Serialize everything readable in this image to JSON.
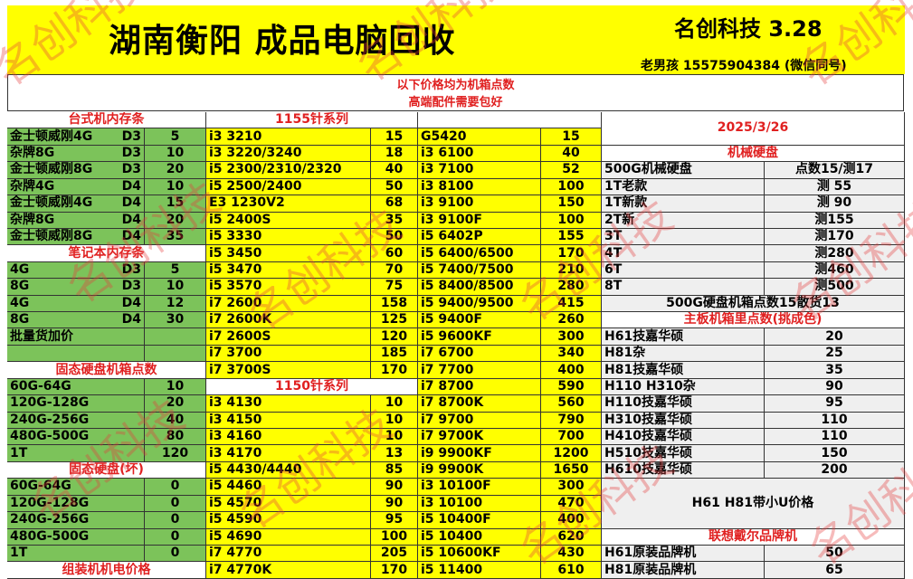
{
  "header": {
    "title": "湖南衡阳 成品电脑回收",
    "brand": "名创科技 3.28",
    "contact": "老男孩 15575904384 (微信同号)"
  },
  "notice": [
    "以下价格均为机箱点数",
    "高端配件需要包好"
  ],
  "watermark": "名创科技",
  "colors": {
    "green": "#7cc35a",
    "yellow": "#ffff00",
    "gray": "#efefef",
    "heading_red": "#e02020"
  },
  "left": {
    "desktop_memory": {
      "title": "台式机内存条",
      "items": [
        {
          "name": "金士顿威刚4G",
          "type": "D3",
          "points": "5"
        },
        {
          "name": "杂牌8G",
          "type": "D3",
          "points": "10"
        },
        {
          "name": "金士顿威刚8G",
          "type": "D3",
          "points": "20"
        },
        {
          "name": "杂牌4G",
          "type": "D4",
          "points": "10"
        },
        {
          "name": "金士顿威刚4G",
          "type": "D4",
          "points": "15"
        },
        {
          "name": "杂牌8G",
          "type": "D4",
          "points": "20"
        },
        {
          "name": "金士顿威刚8G",
          "type": "D4",
          "points": "35"
        }
      ]
    },
    "laptop_memory": {
      "title": "笔记本内存条",
      "items": [
        {
          "name": "4G",
          "type": "D3",
          "points": "5"
        },
        {
          "name": "8G",
          "type": "D3",
          "points": "10"
        },
        {
          "name": "4G",
          "type": "D4",
          "points": "12"
        },
        {
          "name": "8G",
          "type": "D4",
          "points": "30"
        }
      ]
    },
    "bulk_label": "批量货加价",
    "ssd": {
      "title": "固态硬盘机箱点数",
      "items": [
        {
          "size": "60G-64G",
          "points": "10"
        },
        {
          "size": "120G-128G",
          "points": "20"
        },
        {
          "size": "240G-256G",
          "points": "40"
        },
        {
          "size": "480G-500G",
          "points": "80"
        },
        {
          "size": "1T",
          "points": "120"
        }
      ]
    },
    "ssd_broken": {
      "title": "固态硬盘(坏)",
      "items": [
        {
          "size": "60G-64G",
          "points": "0"
        },
        {
          "size": "120G-128G",
          "points": "0"
        },
        {
          "size": "240G-256G",
          "points": "0"
        },
        {
          "size": "480G-500G",
          "points": "0"
        },
        {
          "size": "1T",
          "points": "0"
        }
      ]
    },
    "assembled_title": "组装机机电价格"
  },
  "middle": {
    "socket1155": {
      "title": "1155针系列",
      "items": [
        {
          "model": "i3 3210",
          "points": "15"
        },
        {
          "model": "i3 3220/3240",
          "points": "18"
        },
        {
          "model": "i5 2300/2310/2320",
          "points": "40"
        },
        {
          "model": "i5 2500/2400",
          "points": "50"
        },
        {
          "model": "E3 1230V2",
          "points": "68"
        },
        {
          "model": "i5 2400S",
          "points": "35"
        },
        {
          "model": "i5 3330",
          "points": "50"
        },
        {
          "model": "i5 3450",
          "points": "60"
        },
        {
          "model": "i5 3470",
          "points": "70"
        },
        {
          "model": "i5 3570",
          "points": "75"
        },
        {
          "model": "i7 2600",
          "points": "158"
        },
        {
          "model": "i7 2600K",
          "points": "125"
        },
        {
          "model": "i7 2600S",
          "points": "120"
        },
        {
          "model": "i7 3700",
          "points": "185"
        },
        {
          "model": "i7 3700S",
          "points": "170"
        }
      ]
    },
    "socket1150": {
      "title": "1150针系列",
      "items": [
        {
          "model": "i3 4130",
          "points": "10"
        },
        {
          "model": "i3 4150",
          "points": "10"
        },
        {
          "model": "i3 4160",
          "points": "10"
        },
        {
          "model": "i3 4170",
          "points": "13"
        },
        {
          "model": "i5 4430/4440",
          "points": "85"
        },
        {
          "model": "i5 4460",
          "points": "90"
        },
        {
          "model": "i5 4570",
          "points": "90"
        },
        {
          "model": "i5 4590",
          "points": "95"
        },
        {
          "model": "i5 4690",
          "points": "100"
        },
        {
          "model": "i7 4770",
          "points": "205"
        },
        {
          "model": "i7 4770K",
          "points": "170"
        }
      ]
    },
    "other_cpus": {
      "items": [
        {
          "model": "G5420",
          "points": "15"
        },
        {
          "model": "i3 6100",
          "points": "40"
        },
        {
          "model": "i3 7100",
          "points": "52"
        },
        {
          "model": "i3 8100",
          "points": "100"
        },
        {
          "model": "i3 9100",
          "points": "150"
        },
        {
          "model": "i3 9100F",
          "points": "100"
        },
        {
          "model": "i5 6402P",
          "points": "155"
        },
        {
          "model": "i5 6400/6500",
          "points": "170"
        },
        {
          "model": "i5 7400/7500",
          "points": "210"
        },
        {
          "model": "i5 8400/8500",
          "points": "280"
        },
        {
          "model": "i5 9400/9500",
          "points": "415"
        },
        {
          "model": "i5 9400F",
          "points": "260"
        },
        {
          "model": "i5 9600KF",
          "points": "300"
        },
        {
          "model": "i7 6700",
          "points": "340"
        },
        {
          "model": "i7 7700",
          "points": "400"
        },
        {
          "model": "i7 8700",
          "points": "590"
        },
        {
          "model": "i7 8700K",
          "points": "560"
        },
        {
          "model": "i7 9700",
          "points": "790"
        },
        {
          "model": "i7 9700K",
          "points": "700"
        },
        {
          "model": "i9 9900KF",
          "points": "1200"
        },
        {
          "model": "i9 9900K",
          "points": "1650"
        },
        {
          "model": "i3 10100F",
          "points": "300"
        },
        {
          "model": "i3 10100",
          "points": "470"
        },
        {
          "model": "i5 10400F",
          "points": "400"
        },
        {
          "model": "i5 10400",
          "points": "620"
        },
        {
          "model": "i5 10600KF",
          "points": "430"
        },
        {
          "model": "i5 11400",
          "points": "610"
        }
      ]
    }
  },
  "right": {
    "date": "2025/3/26",
    "hdd": {
      "title": "机械硬盘",
      "items": [
        {
          "name": "500G机械硬盘",
          "points": "点数15/测17"
        },
        {
          "name": "1T老款",
          "points": "测 55"
        },
        {
          "name": "1T新款",
          "points": "测 90"
        },
        {
          "name": "2T新",
          "points": "测155"
        },
        {
          "name": "3T",
          "points": "测170"
        },
        {
          "name": "4T",
          "points": "测280"
        },
        {
          "name": "6T",
          "points": "测460"
        },
        {
          "name": "8T",
          "points": "测500"
        }
      ],
      "note": "500G硬盘机箱点数15散货13"
    },
    "motherboard": {
      "title": "主板机箱里点数(挑成色)",
      "items": [
        {
          "name": "H61技嘉华硕",
          "points": "20"
        },
        {
          "name": "H81杂",
          "points": "25"
        },
        {
          "name": "H81技嘉华硕",
          "points": "35"
        },
        {
          "name": "H110 H310杂",
          "points": "90"
        },
        {
          "name": "H110技嘉华硕",
          "points": "95"
        },
        {
          "name": "H310技嘉华硕",
          "points": "110"
        },
        {
          "name": "H410技嘉华硕",
          "points": "110"
        },
        {
          "name": "H510技嘉华硕",
          "points": "150"
        },
        {
          "name": "H610技嘉华硕",
          "points": "200"
        }
      ]
    },
    "small_cpu_note": "H61 H81带小U价格",
    "brand_pc": {
      "title": "联想戴尔品牌机",
      "items": [
        {
          "name": "H61原装品牌机",
          "points": "50"
        },
        {
          "name": "H81原装品牌机",
          "points": "65"
        }
      ]
    }
  }
}
